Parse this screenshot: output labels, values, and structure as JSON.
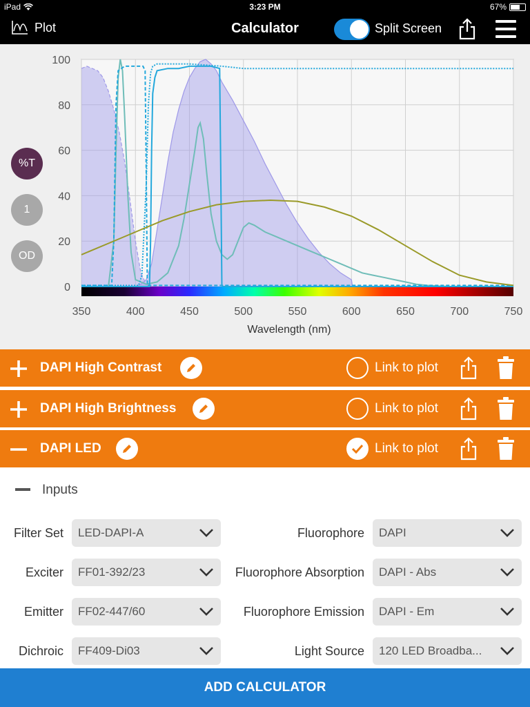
{
  "status_bar": {
    "device": "iPad",
    "time": "3:23 PM",
    "battery": "67%",
    "battery_level": 0.67
  },
  "nav": {
    "plot_label": "Plot",
    "title": "Calculator",
    "split_screen_label": "Split Screen",
    "split_screen_on": true
  },
  "plot_modes": [
    "%T",
    "1",
    "OD"
  ],
  "chart_data": {
    "type": "line",
    "xlabel": "Wavelength (nm)",
    "ylabel": "",
    "xlim": [
      350,
      750
    ],
    "ylim": [
      0,
      100
    ],
    "x_ticks": [
      "350",
      "400",
      "450",
      "500",
      "550",
      "600",
      "650",
      "700",
      "750"
    ],
    "y_ticks": [
      "0",
      "20",
      "40",
      "60",
      "80",
      "100"
    ],
    "grid": true,
    "series": [
      {
        "style": "filled-dashed",
        "color": "#9e98e8",
        "x": [
          350,
          355,
          360,
          365,
          370,
          375,
          380,
          385,
          390,
          395,
          400,
          405,
          410,
          415
        ],
        "y": [
          96,
          97,
          96,
          95,
          92,
          86,
          78,
          68,
          55,
          38,
          20,
          6,
          1,
          0
        ]
      },
      {
        "style": "filled",
        "color": "#9e98e8",
        "x": [
          350,
          400,
          405,
          410,
          415,
          420,
          425,
          430,
          435,
          440,
          445,
          450,
          455,
          460,
          465,
          470,
          475,
          480,
          490,
          500,
          510,
          520,
          530,
          540,
          550,
          560,
          570,
          580,
          590,
          600,
          601
        ],
        "y": [
          0,
          0,
          1,
          3,
          10,
          25,
          40,
          55,
          68,
          78,
          86,
          92,
          96,
          99,
          100,
          98,
          95,
          90,
          82,
          73,
          64,
          54,
          45,
          36,
          28,
          21,
          15,
          10,
          6,
          3,
          0
        ]
      },
      {
        "style": "solid",
        "color": "#6fbdb8",
        "x": [
          350,
          375,
          380,
          382,
          384,
          386,
          388,
          390,
          393,
          396,
          400,
          410,
          420,
          430,
          440,
          445,
          450,
          455,
          458,
          460,
          463,
          466,
          470,
          475,
          480,
          485,
          490,
          495,
          500,
          505,
          510,
          520,
          530,
          540,
          550,
          560,
          570,
          580,
          590,
          600,
          610,
          620,
          630,
          640,
          650,
          660,
          670,
          680,
          690,
          700,
          750
        ],
        "y": [
          0,
          0,
          20,
          60,
          92,
          100,
          95,
          75,
          40,
          15,
          3,
          1,
          2,
          6,
          18,
          30,
          45,
          60,
          70,
          72,
          65,
          50,
          32,
          20,
          14,
          12,
          14,
          20,
          26,
          28,
          27,
          24,
          22,
          20,
          18,
          16,
          14,
          12,
          10,
          8,
          6,
          5,
          4,
          3,
          2,
          1,
          0.5,
          0.2,
          0,
          0,
          0
        ]
      },
      {
        "style": "dashed",
        "color": "#23a8dc",
        "x": [
          350,
          378,
          380,
          382,
          384,
          390,
          400,
          405,
          407,
          409,
          410,
          411,
          420,
          750
        ],
        "y": [
          0.5,
          0.5,
          20,
          80,
          95,
          97,
          97,
          97,
          97,
          95,
          50,
          0.5,
          0.5,
          0.5
        ]
      },
      {
        "style": "dotted",
        "color": "#23a8dc",
        "x": [
          350,
          403,
          406,
          408,
          410,
          412,
          414,
          416,
          420,
          430,
          450,
          480,
          500,
          550,
          600,
          650,
          700,
          750
        ],
        "y": [
          0.5,
          0.5,
          5,
          25,
          45,
          80,
          94,
          97,
          98,
          98,
          98,
          97,
          96,
          96,
          96,
          96,
          96,
          96
        ]
      },
      {
        "style": "solid",
        "color": "#23a8dc",
        "x": [
          350,
          413,
          414,
          415,
          416,
          418,
          420,
          430,
          440,
          450,
          460,
          470,
          478,
          479,
          480,
          481,
          750
        ],
        "y": [
          0,
          0,
          20,
          60,
          85,
          92,
          95,
          96,
          96,
          97,
          97,
          97,
          96,
          50,
          0.5,
          0,
          0
        ]
      },
      {
        "style": "solid",
        "color": "#9a9a28",
        "x": [
          350,
          375,
          400,
          425,
          450,
          475,
          500,
          525,
          550,
          575,
          600,
          625,
          650,
          675,
          700,
          725,
          750
        ],
        "y": [
          14,
          19,
          24,
          29,
          33,
          36,
          37.5,
          38,
          37.5,
          35,
          31,
          25,
          18,
          11,
          5,
          2,
          0.5
        ]
      }
    ]
  },
  "calculators": [
    {
      "name": "DAPI High Contrast",
      "expanded": false,
      "linked": false,
      "link_label": "Link to plot"
    },
    {
      "name": "DAPI High Brightness",
      "expanded": false,
      "linked": false,
      "link_label": "Link to plot"
    },
    {
      "name": "DAPI LED",
      "expanded": true,
      "linked": true,
      "link_label": "Link to plot"
    }
  ],
  "inputs": {
    "title": "Inputs",
    "left": [
      {
        "label": "Filter Set",
        "value": "LED-DAPI-A"
      },
      {
        "label": "Exciter",
        "value": "FF01-392/23"
      },
      {
        "label": "Emitter",
        "value": "FF02-447/60"
      },
      {
        "label": "Dichroic",
        "value": "FF409-Di03"
      }
    ],
    "right": [
      {
        "label": "Fluorophore",
        "value": "DAPI"
      },
      {
        "label": "Fluorophore Absorption",
        "value": "DAPI - Abs"
      },
      {
        "label": "Fluorophore Emission",
        "value": "DAPI - Em"
      },
      {
        "label": "Light Source",
        "value": "120 LED Broadba..."
      }
    ]
  },
  "add_calculator_label": "ADD CALCULATOR"
}
